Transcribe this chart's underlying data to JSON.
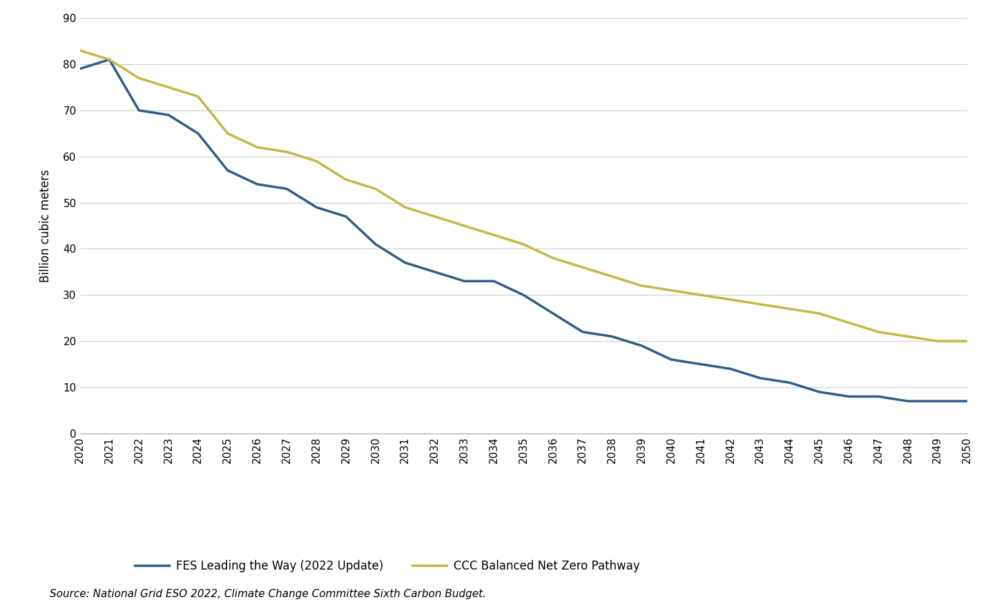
{
  "years": [
    2020,
    2021,
    2022,
    2023,
    2024,
    2025,
    2026,
    2027,
    2028,
    2029,
    2030,
    2031,
    2032,
    2033,
    2034,
    2035,
    2036,
    2037,
    2038,
    2039,
    2040,
    2041,
    2042,
    2043,
    2044,
    2045,
    2046,
    2047,
    2048,
    2049,
    2050
  ],
  "fes_leading": [
    79,
    81,
    70,
    69,
    65,
    57,
    54,
    53,
    49,
    47,
    41,
    37,
    35,
    33,
    33,
    30,
    26,
    22,
    21,
    19,
    16,
    15,
    14,
    12,
    11,
    9,
    8,
    8,
    7,
    7,
    7
  ],
  "ccc_balanced": [
    83,
    81,
    77,
    75,
    73,
    65,
    62,
    61,
    59,
    55,
    53,
    49,
    47,
    45,
    43,
    41,
    38,
    36,
    34,
    32,
    31,
    30,
    29,
    28,
    27,
    26,
    24,
    22,
    21,
    20,
    20
  ],
  "fes_color": "#2E5C8A",
  "ccc_color": "#C8B645",
  "fes_label": "FES Leading the Way (2022 Update)",
  "ccc_label": "CCC Balanced Net Zero Pathway",
  "ylabel": "Billion cubic meters",
  "ylim": [
    0,
    90
  ],
  "yticks": [
    0,
    10,
    20,
    30,
    40,
    50,
    60,
    70,
    80,
    90
  ],
  "source_text": "Source: National Grid ESO 2022, Climate Change Committee Sixth Carbon Budget.",
  "line_width": 2.5,
  "bg_color": "#FFFFFF",
  "grid_color": "#CCCCCC"
}
